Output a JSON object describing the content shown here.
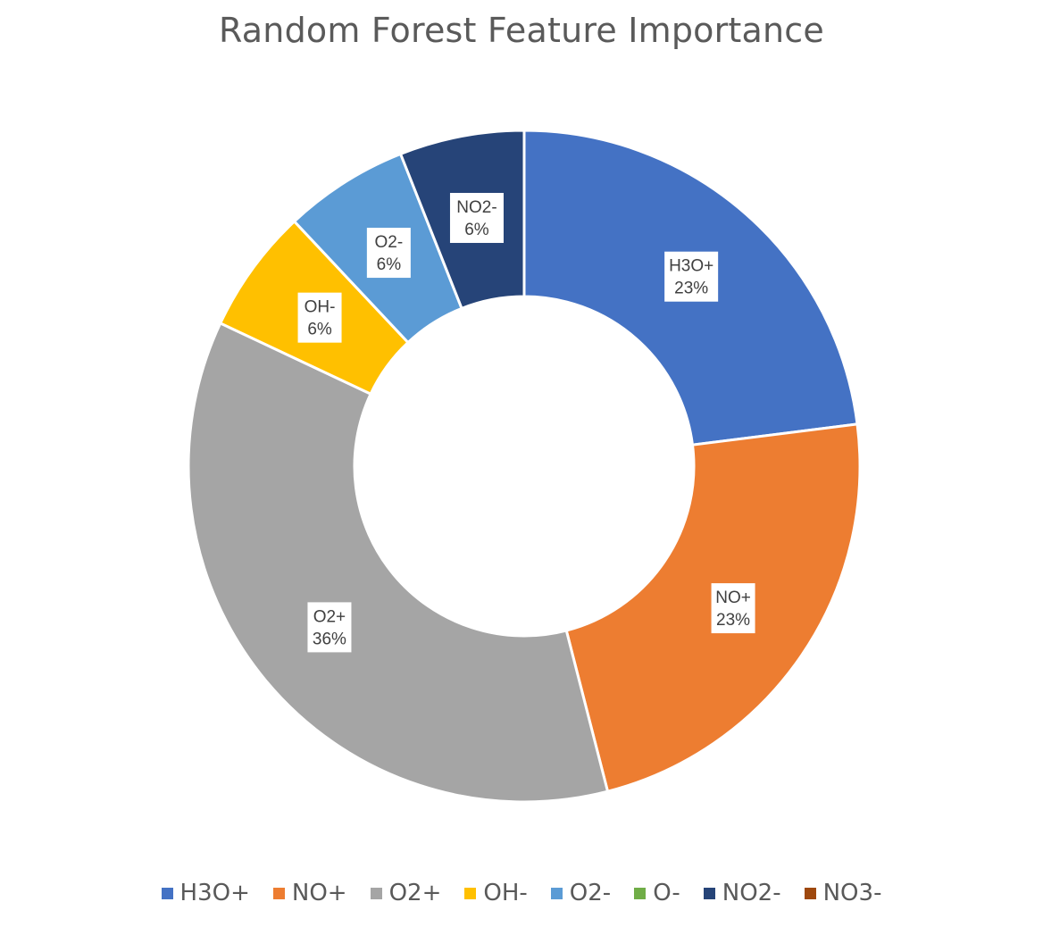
{
  "chart_data": {
    "type": "pie",
    "title": "Random Forest Feature Importance",
    "donut": true,
    "legend_position": "bottom",
    "labels": [
      "H3O+",
      "NO+",
      "O2+",
      "OH-",
      "O2-",
      "O-",
      "NO2-",
      "NO3-"
    ],
    "values": [
      23,
      23,
      36,
      6,
      6,
      0,
      6,
      0
    ],
    "value_labels": [
      "23%",
      "23%",
      "36%",
      "6%",
      "6%",
      "",
      "6%",
      ""
    ],
    "colors": [
      "#4472C4",
      "#ED7D31",
      "#A5A5A5",
      "#FFC000",
      "#5B9BD5",
      "#70AD47",
      "#264478",
      "#9E480E"
    ]
  }
}
